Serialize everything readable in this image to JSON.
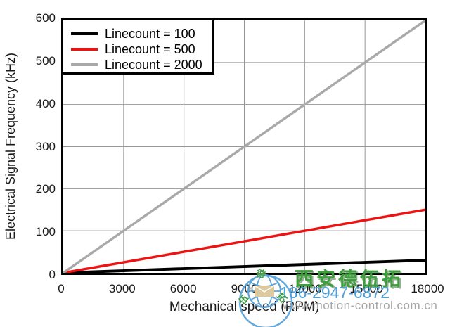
{
  "chart_data": {
    "type": "line",
    "title": "",
    "xlabel": "Mechanical speed (RPM)",
    "ylabel": "Electrical Signal Frequency (kHz)",
    "xlim": [
      0,
      18000
    ],
    "ylim": [
      0,
      600
    ],
    "x_ticks": [
      0,
      3000,
      6000,
      9000,
      12000,
      15000,
      18000
    ],
    "y_ticks": [
      0,
      100,
      200,
      300,
      400,
      500,
      600
    ],
    "grid": true,
    "grid_color": "#969696",
    "legend_position": "top-left",
    "series": [
      {
        "name": "Linecount = 100",
        "color": "#000000",
        "line_width": 4,
        "x": [
          0,
          18000
        ],
        "y": [
          0,
          30
        ]
      },
      {
        "name": "Linecount = 500",
        "color": "#ec1313",
        "line_width": 3.5,
        "x": [
          0,
          18000
        ],
        "y": [
          0,
          150
        ]
      },
      {
        "name": "Linecount = 2000",
        "color": "#a9a9a9",
        "line_width": 3.5,
        "x": [
          0,
          18000
        ],
        "y": [
          0,
          600
        ]
      }
    ]
  },
  "watermark": {
    "company": "西安德伍拓",
    "phone": "186-2947-6872",
    "url": "www.motion-control.com.cn",
    "seal_chars": [
      "德",
      "伍",
      "拓"
    ],
    "colors": {
      "company_green": "#3f9e3c",
      "phone_blue": "#4da0d8",
      "url_gray": "#a6a6a6",
      "globe_blue": "#5ba4da",
      "envelope_tan": "#dcc9a0"
    }
  }
}
